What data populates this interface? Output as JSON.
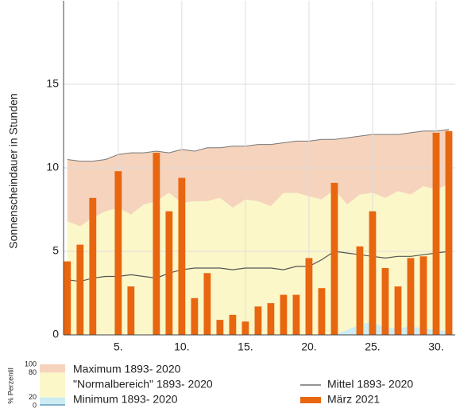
{
  "chart_data": {
    "type": "bar",
    "ylabel": "Sonnenscheindauer in Stunden",
    "x": [
      1,
      2,
      3,
      4,
      5,
      6,
      7,
      8,
      9,
      10,
      11,
      12,
      13,
      14,
      15,
      16,
      17,
      18,
      19,
      20,
      21,
      22,
      23,
      24,
      25,
      26,
      27,
      28,
      29,
      30,
      31
    ],
    "xlim": [
      0.7,
      31.5
    ],
    "xticks": [
      {
        "value": 5,
        "label": "5."
      },
      {
        "value": 10,
        "label": "10."
      },
      {
        "value": 15,
        "label": "15."
      },
      {
        "value": 20,
        "label": "20."
      },
      {
        "value": 25,
        "label": "25."
      },
      {
        "value": 30,
        "label": "30."
      }
    ],
    "ylim": [
      0,
      20
    ],
    "yticks": [
      0,
      5,
      10,
      15
    ],
    "grid": true,
    "series": [
      {
        "name": "Maximum 1893- 2020",
        "kind": "area",
        "color": "#f6d3bd",
        "values": [
          10.5,
          10.4,
          10.4,
          10.5,
          10.8,
          10.9,
          10.9,
          11.0,
          10.9,
          11.1,
          11.0,
          11.2,
          11.2,
          11.3,
          11.3,
          11.4,
          11.4,
          11.5,
          11.6,
          11.6,
          11.7,
          11.7,
          11.8,
          11.9,
          12.0,
          12.0,
          12.0,
          12.1,
          12.2,
          12.2,
          12.3
        ]
      },
      {
        "name": "\"Normalbereich\" 1893- 2020",
        "kind": "area",
        "color": "#fbf7c9",
        "values": [
          6.8,
          6.5,
          7.0,
          7.4,
          7.6,
          7.2,
          7.8,
          8.0,
          8.5,
          7.9,
          8.0,
          8.0,
          8.2,
          7.6,
          8.1,
          8.0,
          7.7,
          8.5,
          8.5,
          8.3,
          8.1,
          8.7,
          7.8,
          8.4,
          8.5,
          8.2,
          8.6,
          8.4,
          8.9,
          8.7,
          9.0
        ]
      },
      {
        "name": "Minimum 1893- 2020",
        "kind": "area",
        "color": "#cdecf3",
        "values": [
          0,
          0,
          0,
          0,
          0,
          0,
          0,
          0,
          0,
          0,
          0,
          0,
          0,
          0,
          0,
          0,
          0,
          0,
          0,
          0,
          0,
          0,
          0.3,
          0.6,
          0.8,
          0.4,
          0.4,
          0.5,
          0.4,
          0.3,
          0.2
        ]
      },
      {
        "name": "Mittel 1893- 2020",
        "kind": "line",
        "color": "#555555",
        "values": [
          3.3,
          3.2,
          3.4,
          3.5,
          3.5,
          3.6,
          3.5,
          3.4,
          3.7,
          3.9,
          4.0,
          4.0,
          4.0,
          3.9,
          4.0,
          4.0,
          4.0,
          3.9,
          4.1,
          4.1,
          4.5,
          5.0,
          4.9,
          4.8,
          4.7,
          4.6,
          4.7,
          4.7,
          4.8,
          4.9,
          5.0
        ]
      },
      {
        "name": "März 2021",
        "kind": "bar",
        "color": "#e8660f",
        "values": [
          4.4,
          5.4,
          8.2,
          0,
          9.8,
          2.9,
          0,
          10.9,
          7.4,
          9.4,
          2.2,
          3.7,
          0.9,
          1.2,
          0.8,
          1.7,
          1.9,
          2.4,
          2.4,
          4.6,
          2.8,
          9.1,
          0,
          5.3,
          7.4,
          4.0,
          2.9,
          4.6,
          4.7,
          12.1,
          12.2
        ]
      }
    ],
    "percentile_scale": {
      "title": "% Perzentil",
      "ticks": [
        100,
        80,
        20,
        0
      ]
    }
  }
}
